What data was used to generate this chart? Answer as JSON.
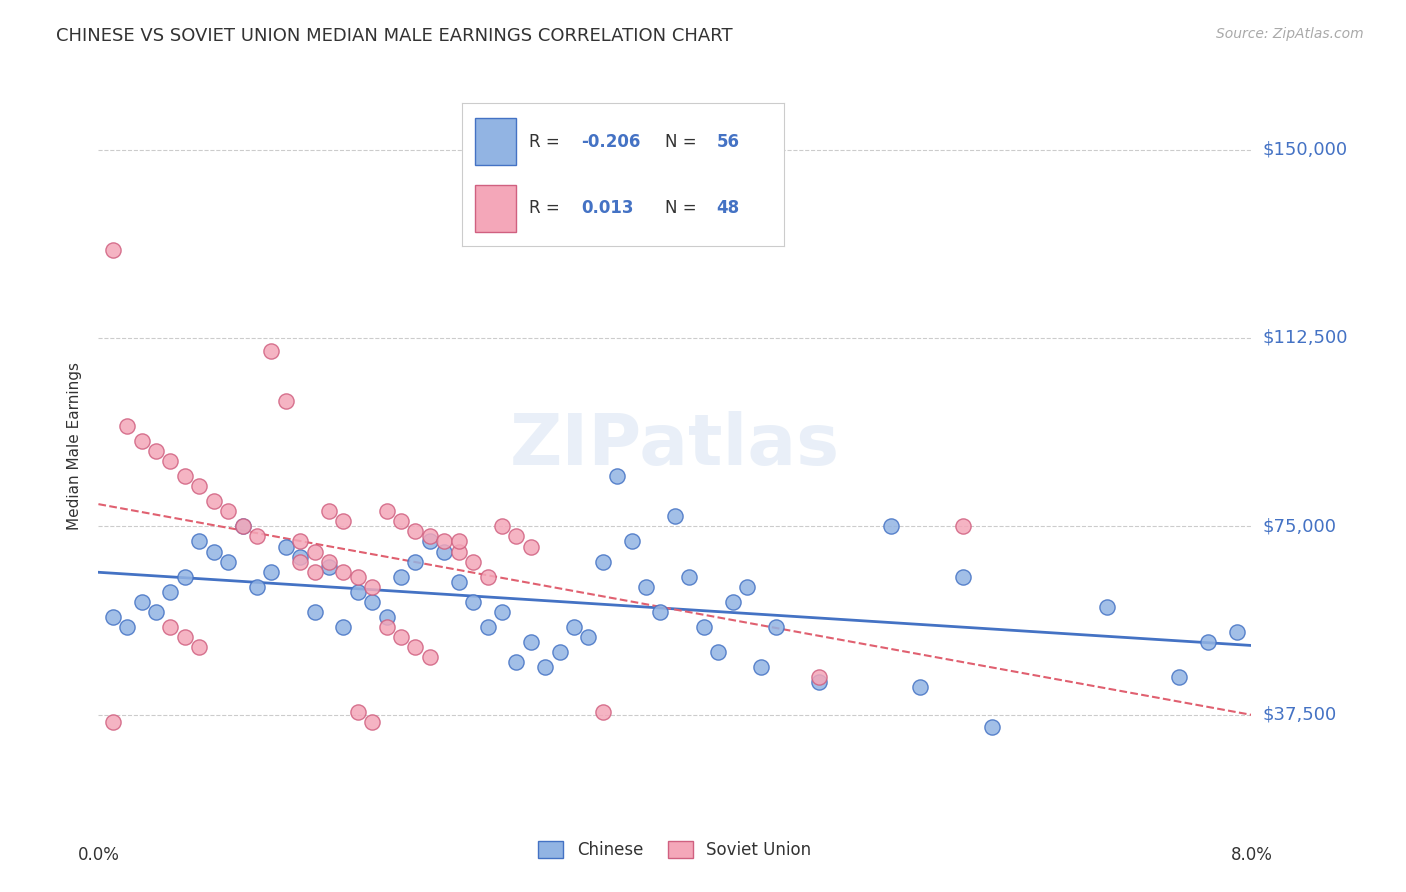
{
  "title": "CHINESE VS SOVIET UNION MEDIAN MALE EARNINGS CORRELATION CHART",
  "source": "Source: ZipAtlas.com",
  "ylabel": "Median Male Earnings",
  "yticks": [
    37500,
    75000,
    112500,
    150000
  ],
  "ytick_labels": [
    "$37,500",
    "$75,000",
    "$112,500",
    "$150,000"
  ],
  "xlim": [
    0.0,
    0.08
  ],
  "ylim": [
    20000,
    162000
  ],
  "watermark": "ZIPatlas",
  "chinese_color": "#92b4e3",
  "soviet_color": "#f4a7b9",
  "chinese_line_color": "#4472c4",
  "soviet_line_color": "#e06070",
  "label_color": "#4472c4",
  "background_color": "#ffffff",
  "chinese_points": [
    [
      0.001,
      57000
    ],
    [
      0.002,
      55000
    ],
    [
      0.003,
      60000
    ],
    [
      0.004,
      58000
    ],
    [
      0.005,
      62000
    ],
    [
      0.006,
      65000
    ],
    [
      0.007,
      72000
    ],
    [
      0.008,
      70000
    ],
    [
      0.009,
      68000
    ],
    [
      0.01,
      75000
    ],
    [
      0.011,
      63000
    ],
    [
      0.012,
      66000
    ],
    [
      0.013,
      71000
    ],
    [
      0.014,
      69000
    ],
    [
      0.015,
      58000
    ],
    [
      0.016,
      67000
    ],
    [
      0.017,
      55000
    ],
    [
      0.018,
      62000
    ],
    [
      0.019,
      60000
    ],
    [
      0.02,
      57000
    ],
    [
      0.021,
      65000
    ],
    [
      0.022,
      68000
    ],
    [
      0.023,
      72000
    ],
    [
      0.024,
      70000
    ],
    [
      0.025,
      64000
    ],
    [
      0.026,
      60000
    ],
    [
      0.027,
      55000
    ],
    [
      0.028,
      58000
    ],
    [
      0.029,
      48000
    ],
    [
      0.03,
      52000
    ],
    [
      0.031,
      47000
    ],
    [
      0.032,
      50000
    ],
    [
      0.033,
      55000
    ],
    [
      0.034,
      53000
    ],
    [
      0.035,
      68000
    ],
    [
      0.036,
      85000
    ],
    [
      0.037,
      72000
    ],
    [
      0.038,
      63000
    ],
    [
      0.039,
      58000
    ],
    [
      0.04,
      77000
    ],
    [
      0.041,
      65000
    ],
    [
      0.042,
      55000
    ],
    [
      0.043,
      50000
    ],
    [
      0.044,
      60000
    ],
    [
      0.045,
      63000
    ],
    [
      0.046,
      47000
    ],
    [
      0.047,
      55000
    ],
    [
      0.05,
      44000
    ],
    [
      0.055,
      75000
    ],
    [
      0.057,
      43000
    ],
    [
      0.06,
      65000
    ],
    [
      0.062,
      35000
    ],
    [
      0.07,
      59000
    ],
    [
      0.075,
      45000
    ],
    [
      0.077,
      52000
    ],
    [
      0.079,
      54000
    ]
  ],
  "soviet_points": [
    [
      0.001,
      130000
    ],
    [
      0.002,
      95000
    ],
    [
      0.003,
      92000
    ],
    [
      0.004,
      90000
    ],
    [
      0.005,
      88000
    ],
    [
      0.006,
      85000
    ],
    [
      0.007,
      83000
    ],
    [
      0.008,
      80000
    ],
    [
      0.009,
      78000
    ],
    [
      0.01,
      75000
    ],
    [
      0.011,
      73000
    ],
    [
      0.012,
      110000
    ],
    [
      0.013,
      100000
    ],
    [
      0.014,
      72000
    ],
    [
      0.015,
      70000
    ],
    [
      0.016,
      68000
    ],
    [
      0.017,
      66000
    ],
    [
      0.018,
      65000
    ],
    [
      0.019,
      63000
    ],
    [
      0.02,
      78000
    ],
    [
      0.021,
      76000
    ],
    [
      0.022,
      74000
    ],
    [
      0.023,
      73000
    ],
    [
      0.024,
      72000
    ],
    [
      0.025,
      70000
    ],
    [
      0.026,
      68000
    ],
    [
      0.027,
      65000
    ],
    [
      0.028,
      75000
    ],
    [
      0.029,
      73000
    ],
    [
      0.03,
      71000
    ],
    [
      0.014,
      68000
    ],
    [
      0.015,
      66000
    ],
    [
      0.016,
      78000
    ],
    [
      0.017,
      76000
    ],
    [
      0.018,
      38000
    ],
    [
      0.019,
      36000
    ],
    [
      0.02,
      55000
    ],
    [
      0.021,
      53000
    ],
    [
      0.022,
      51000
    ],
    [
      0.023,
      49000
    ],
    [
      0.005,
      55000
    ],
    [
      0.006,
      53000
    ],
    [
      0.007,
      51000
    ],
    [
      0.035,
      38000
    ],
    [
      0.025,
      72000
    ],
    [
      0.05,
      45000
    ],
    [
      0.06,
      75000
    ],
    [
      0.001,
      36000
    ]
  ]
}
